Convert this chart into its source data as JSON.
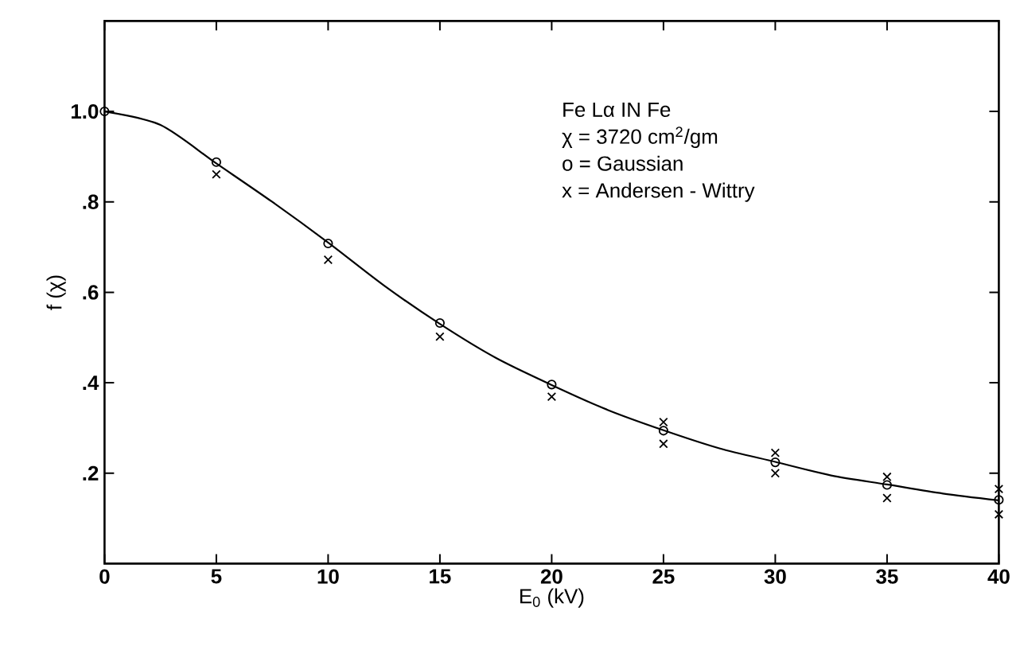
{
  "chart_data": {
    "type": "scatter",
    "xlabel": "E$_{0}$ (kV)",
    "ylabel": "f (χ)",
    "annotations": [
      "Fe Lα   IN Fe",
      "χ = 3720 cm$^{2}$/gm",
      "o = Gaussian",
      "x = Andersen - Wittry"
    ],
    "xlim": [
      0,
      40
    ],
    "ylim": [
      0,
      1.2
    ],
    "xticks": [
      0,
      5,
      10,
      15,
      20,
      25,
      30,
      35,
      40
    ],
    "yticks": [
      {
        "value": 0.2,
        "label": ".2"
      },
      {
        "value": 0.4,
        "label": ".4"
      },
      {
        "value": 0.6,
        "label": ".6"
      },
      {
        "value": 0.8,
        "label": ".8"
      },
      {
        "value": 1.0,
        "label": "1.0"
      }
    ],
    "grid": false,
    "series": [
      {
        "type": "line",
        "color": "#000000",
        "marker": "none",
        "line_style": "solid",
        "x": [
          0,
          2.5,
          5,
          7.5,
          10,
          12.5,
          15,
          17.5,
          20,
          22.5,
          25,
          27.5,
          30,
          32.5,
          35,
          37.5,
          40
        ],
        "values": [
          1.0,
          0.97,
          0.885,
          0.8,
          0.71,
          0.615,
          0.53,
          0.455,
          0.395,
          0.34,
          0.295,
          0.255,
          0.225,
          0.195,
          0.175,
          0.155,
          0.14
        ]
      },
      {
        "color": "#000000",
        "marker": "circle",
        "x": [
          0,
          5,
          10,
          15,
          20,
          25,
          30,
          35,
          40
        ],
        "values": [
          1.0,
          0.888,
          0.708,
          0.532,
          0.396,
          0.294,
          0.224,
          0.174,
          0.141
        ]
      },
      {
        "color": "#000000",
        "marker": "cross",
        "x": [
          5,
          10,
          15,
          20,
          25,
          25,
          30,
          30,
          35,
          35,
          40,
          40
        ],
        "values": [
          0.861,
          0.672,
          0.502,
          0.369,
          0.313,
          0.265,
          0.245,
          0.2,
          0.192,
          0.145,
          0.165,
          0.109
        ]
      }
    ]
  }
}
